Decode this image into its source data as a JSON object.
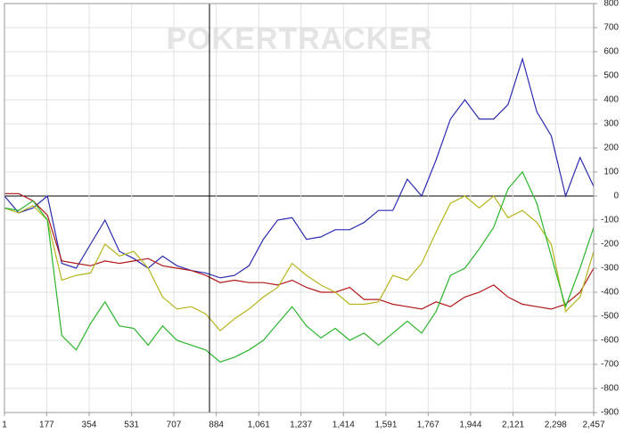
{
  "chart_data": {
    "type": "line",
    "watermark": "POKERTRACKER",
    "x": [
      1,
      60,
      120,
      180,
      240,
      300,
      360,
      420,
      480,
      540,
      600,
      660,
      720,
      780,
      840,
      900,
      960,
      1020,
      1080,
      1140,
      1200,
      1260,
      1320,
      1380,
      1440,
      1500,
      1560,
      1620,
      1680,
      1740,
      1800,
      1860,
      1920,
      1980,
      2040,
      2100,
      2160,
      2220,
      2280,
      2340,
      2400,
      2457
    ],
    "series": [
      {
        "color": "#2b2bb0",
        "values": [
          0,
          -70,
          -50,
          0,
          -280,
          -300,
          -200,
          -100,
          -230,
          -260,
          -300,
          -250,
          -290,
          -310,
          -320,
          -340,
          -330,
          -290,
          -180,
          -100,
          -90,
          -180,
          -170,
          -140,
          -140,
          -110,
          -60,
          -60,
          70,
          0,
          150,
          320,
          400,
          320,
          320,
          380,
          570,
          350,
          250,
          0,
          160,
          40
        ]
      },
      {
        "color": "#b01818",
        "values": [
          10,
          10,
          -20,
          -80,
          -270,
          -280,
          -290,
          -270,
          -280,
          -270,
          -260,
          -290,
          -300,
          -310,
          -330,
          -360,
          -350,
          -360,
          -360,
          -370,
          -350,
          -380,
          -400,
          -400,
          -380,
          -430,
          -430,
          -450,
          -460,
          -470,
          -440,
          -460,
          -420,
          -400,
          -370,
          -420,
          -450,
          -460,
          -470,
          -450,
          -400,
          -300
        ]
      },
      {
        "color": "#b5b51c",
        "values": [
          -50,
          -70,
          -40,
          -100,
          -350,
          -330,
          -320,
          -200,
          -250,
          -230,
          -300,
          -420,
          -470,
          -460,
          -490,
          -560,
          -510,
          -470,
          -420,
          -380,
          -280,
          -330,
          -370,
          -400,
          -450,
          -450,
          -440,
          -330,
          -350,
          -280,
          -150,
          -30,
          0,
          -50,
          0,
          -90,
          -60,
          -110,
          -200,
          -480,
          -420,
          -230
        ]
      },
      {
        "color": "#2bb52b",
        "values": [
          -50,
          -60,
          -20,
          -100,
          -580,
          -640,
          -530,
          -440,
          -540,
          -550,
          -620,
          -540,
          -600,
          -620,
          -640,
          -690,
          -670,
          -640,
          -600,
          -530,
          -460,
          -540,
          -590,
          -550,
          -600,
          -570,
          -620,
          -570,
          -520,
          -570,
          -480,
          -330,
          -300,
          -220,
          -130,
          30,
          100,
          -30,
          -250,
          -460,
          -300,
          -130
        ]
      }
    ],
    "xlim": [
      1,
      2457
    ],
    "xticks": [
      1,
      177,
      354,
      531,
      707,
      884,
      {
        "value": 1061,
        "label": "1,061"
      },
      {
        "value": 1237,
        "label": "1,237"
      },
      {
        "value": 1414,
        "label": "1,414"
      },
      {
        "value": 1591,
        "label": "1,591"
      },
      {
        "value": 1767,
        "label": "1,767"
      },
      {
        "value": 1944,
        "label": "1,944"
      },
      {
        "value": 2121,
        "label": "2,121"
      },
      {
        "value": 2298,
        "label": "2,298"
      },
      {
        "value": 2457,
        "label": "2,457"
      }
    ],
    "ylim": [
      -900,
      800
    ],
    "yticks": [
      -900,
      -800,
      -700,
      -600,
      -500,
      -400,
      -300,
      -200,
      -100,
      0,
      100,
      200,
      300,
      400,
      500,
      600,
      700,
      800
    ],
    "grid": true
  }
}
